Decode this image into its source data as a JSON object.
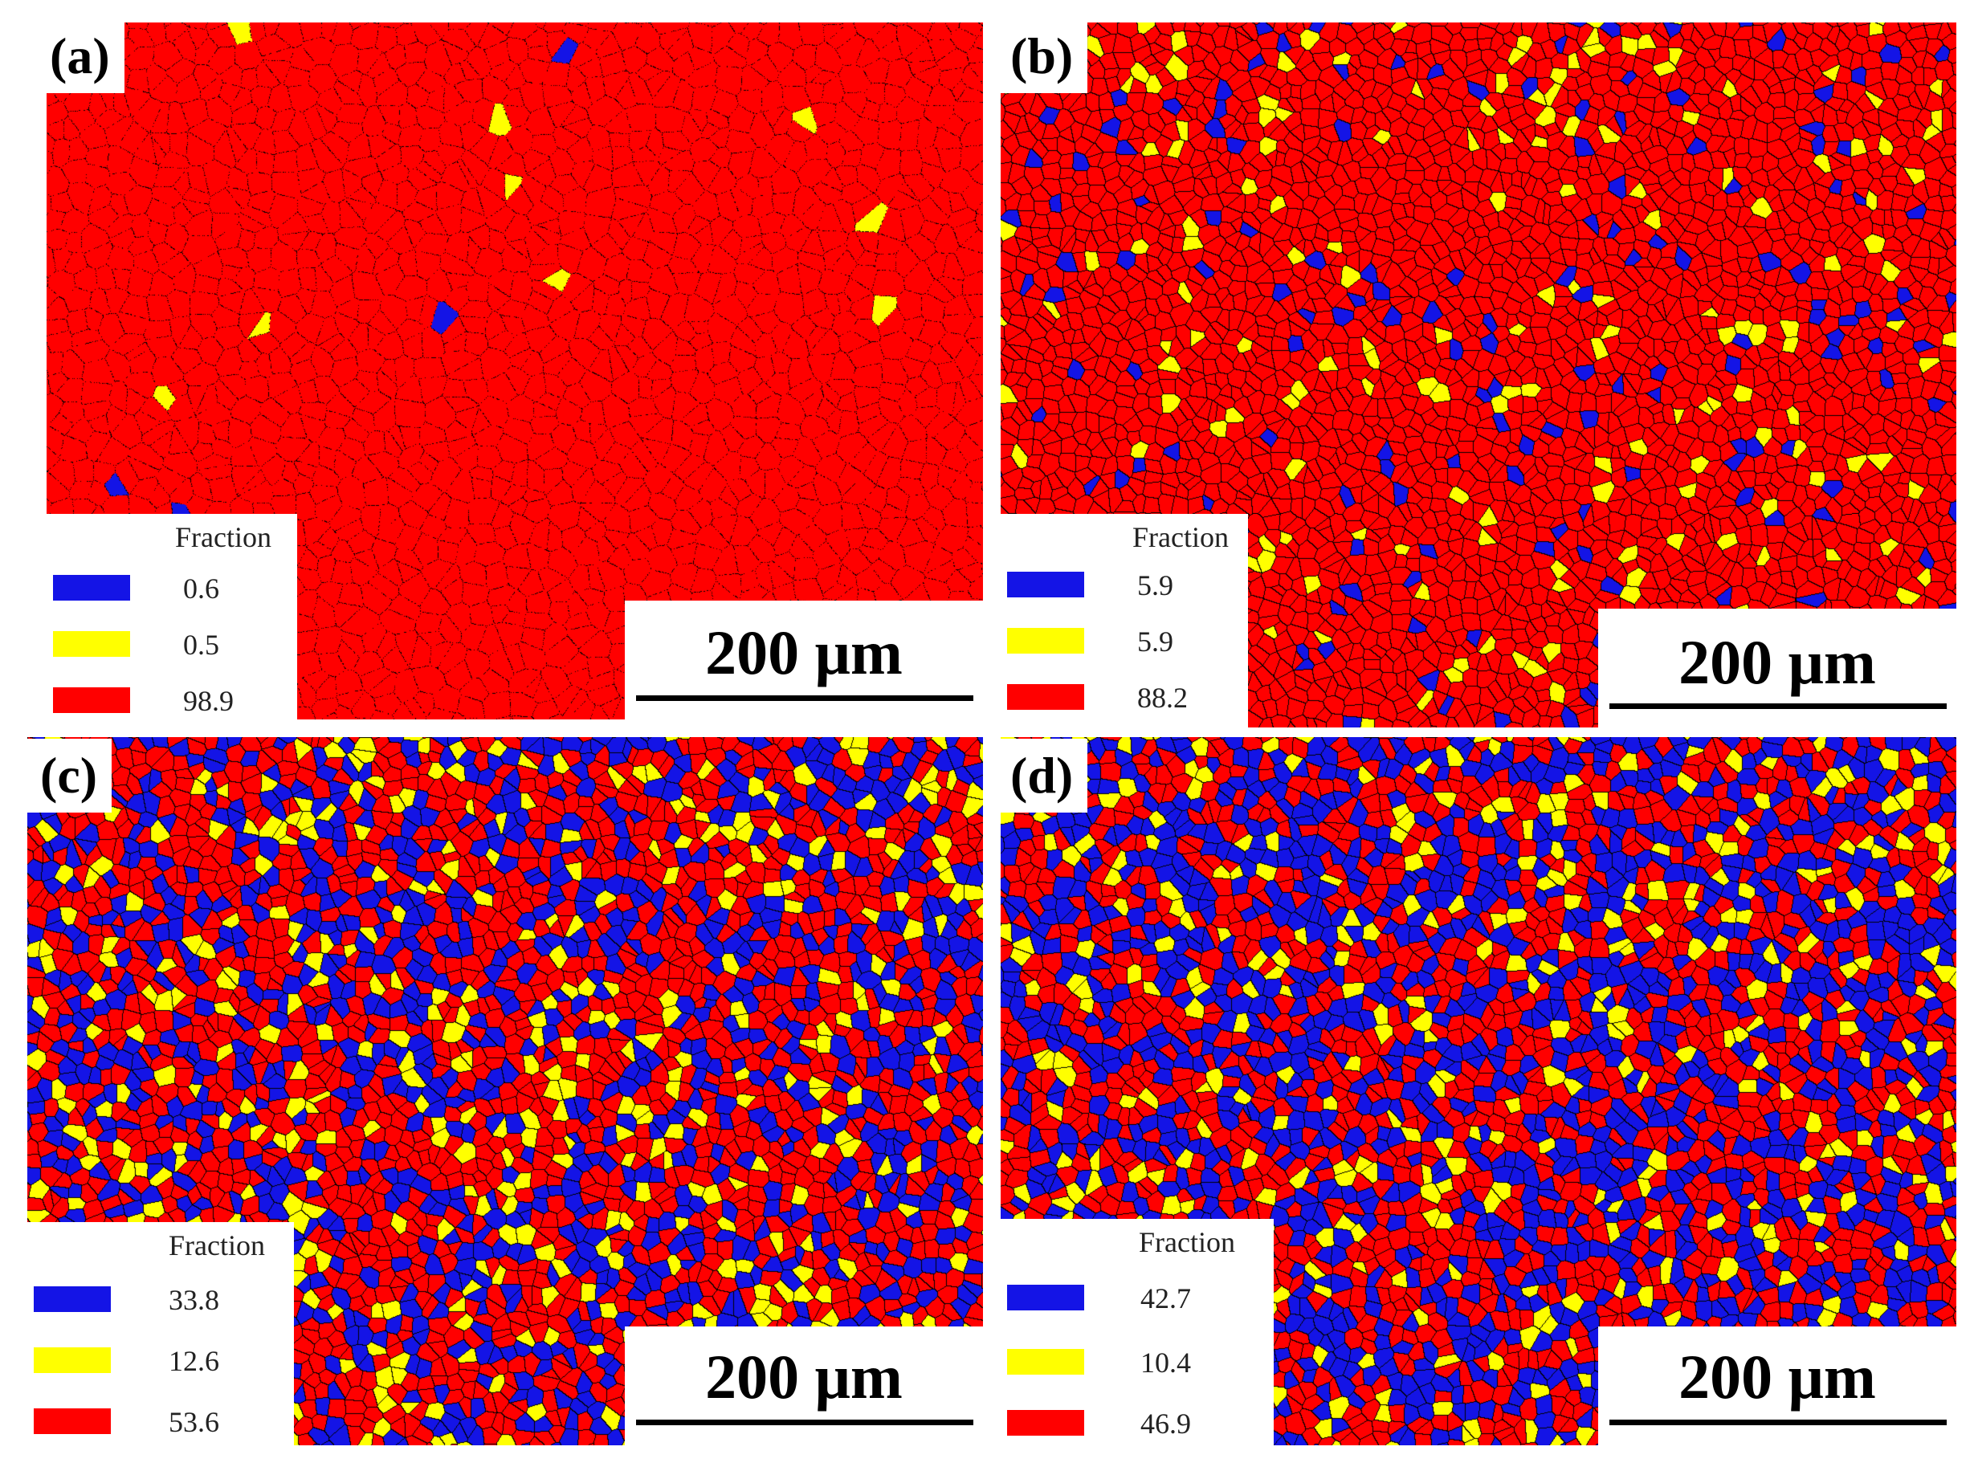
{
  "colors": {
    "blue": "#1414e6",
    "yellow": "#ffff00",
    "red": "#ff0000",
    "boundary": "#000000"
  },
  "legend_swatch_colors": [
    "#1414e6",
    "#ffff00",
    "#ff0000"
  ],
  "panels": [
    {
      "label": "(a)",
      "legend": {
        "title": "Fraction",
        "values": [
          "0.6",
          "0.5",
          "98.9"
        ]
      },
      "scale_bar": "200 μm",
      "phase_fractions": {
        "blue": 0.6,
        "yellow": 0.5,
        "red": 98.9
      },
      "texture": "coarse"
    },
    {
      "label": "(b)",
      "legend": {
        "title": "Fraction",
        "values": [
          "5.9",
          "5.9",
          "88.2"
        ]
      },
      "scale_bar": "200 μm",
      "phase_fractions": {
        "blue": 5.9,
        "yellow": 5.9,
        "red": 88.2
      },
      "texture": "fine"
    },
    {
      "label": "(c)",
      "legend": {
        "title": "Fraction",
        "values": [
          "33.8",
          "12.6",
          "53.6"
        ]
      },
      "scale_bar": "200 μm",
      "phase_fractions": {
        "blue": 33.8,
        "yellow": 12.6,
        "red": 53.6
      },
      "texture": "fine"
    },
    {
      "label": "(d)",
      "legend": {
        "title": "Fraction",
        "values": [
          "42.7",
          "10.4",
          "46.9"
        ]
      },
      "scale_bar": "200 μm",
      "phase_fractions": {
        "blue": 42.7,
        "yellow": 10.4,
        "red": 46.9
      },
      "texture": "fine"
    }
  ]
}
